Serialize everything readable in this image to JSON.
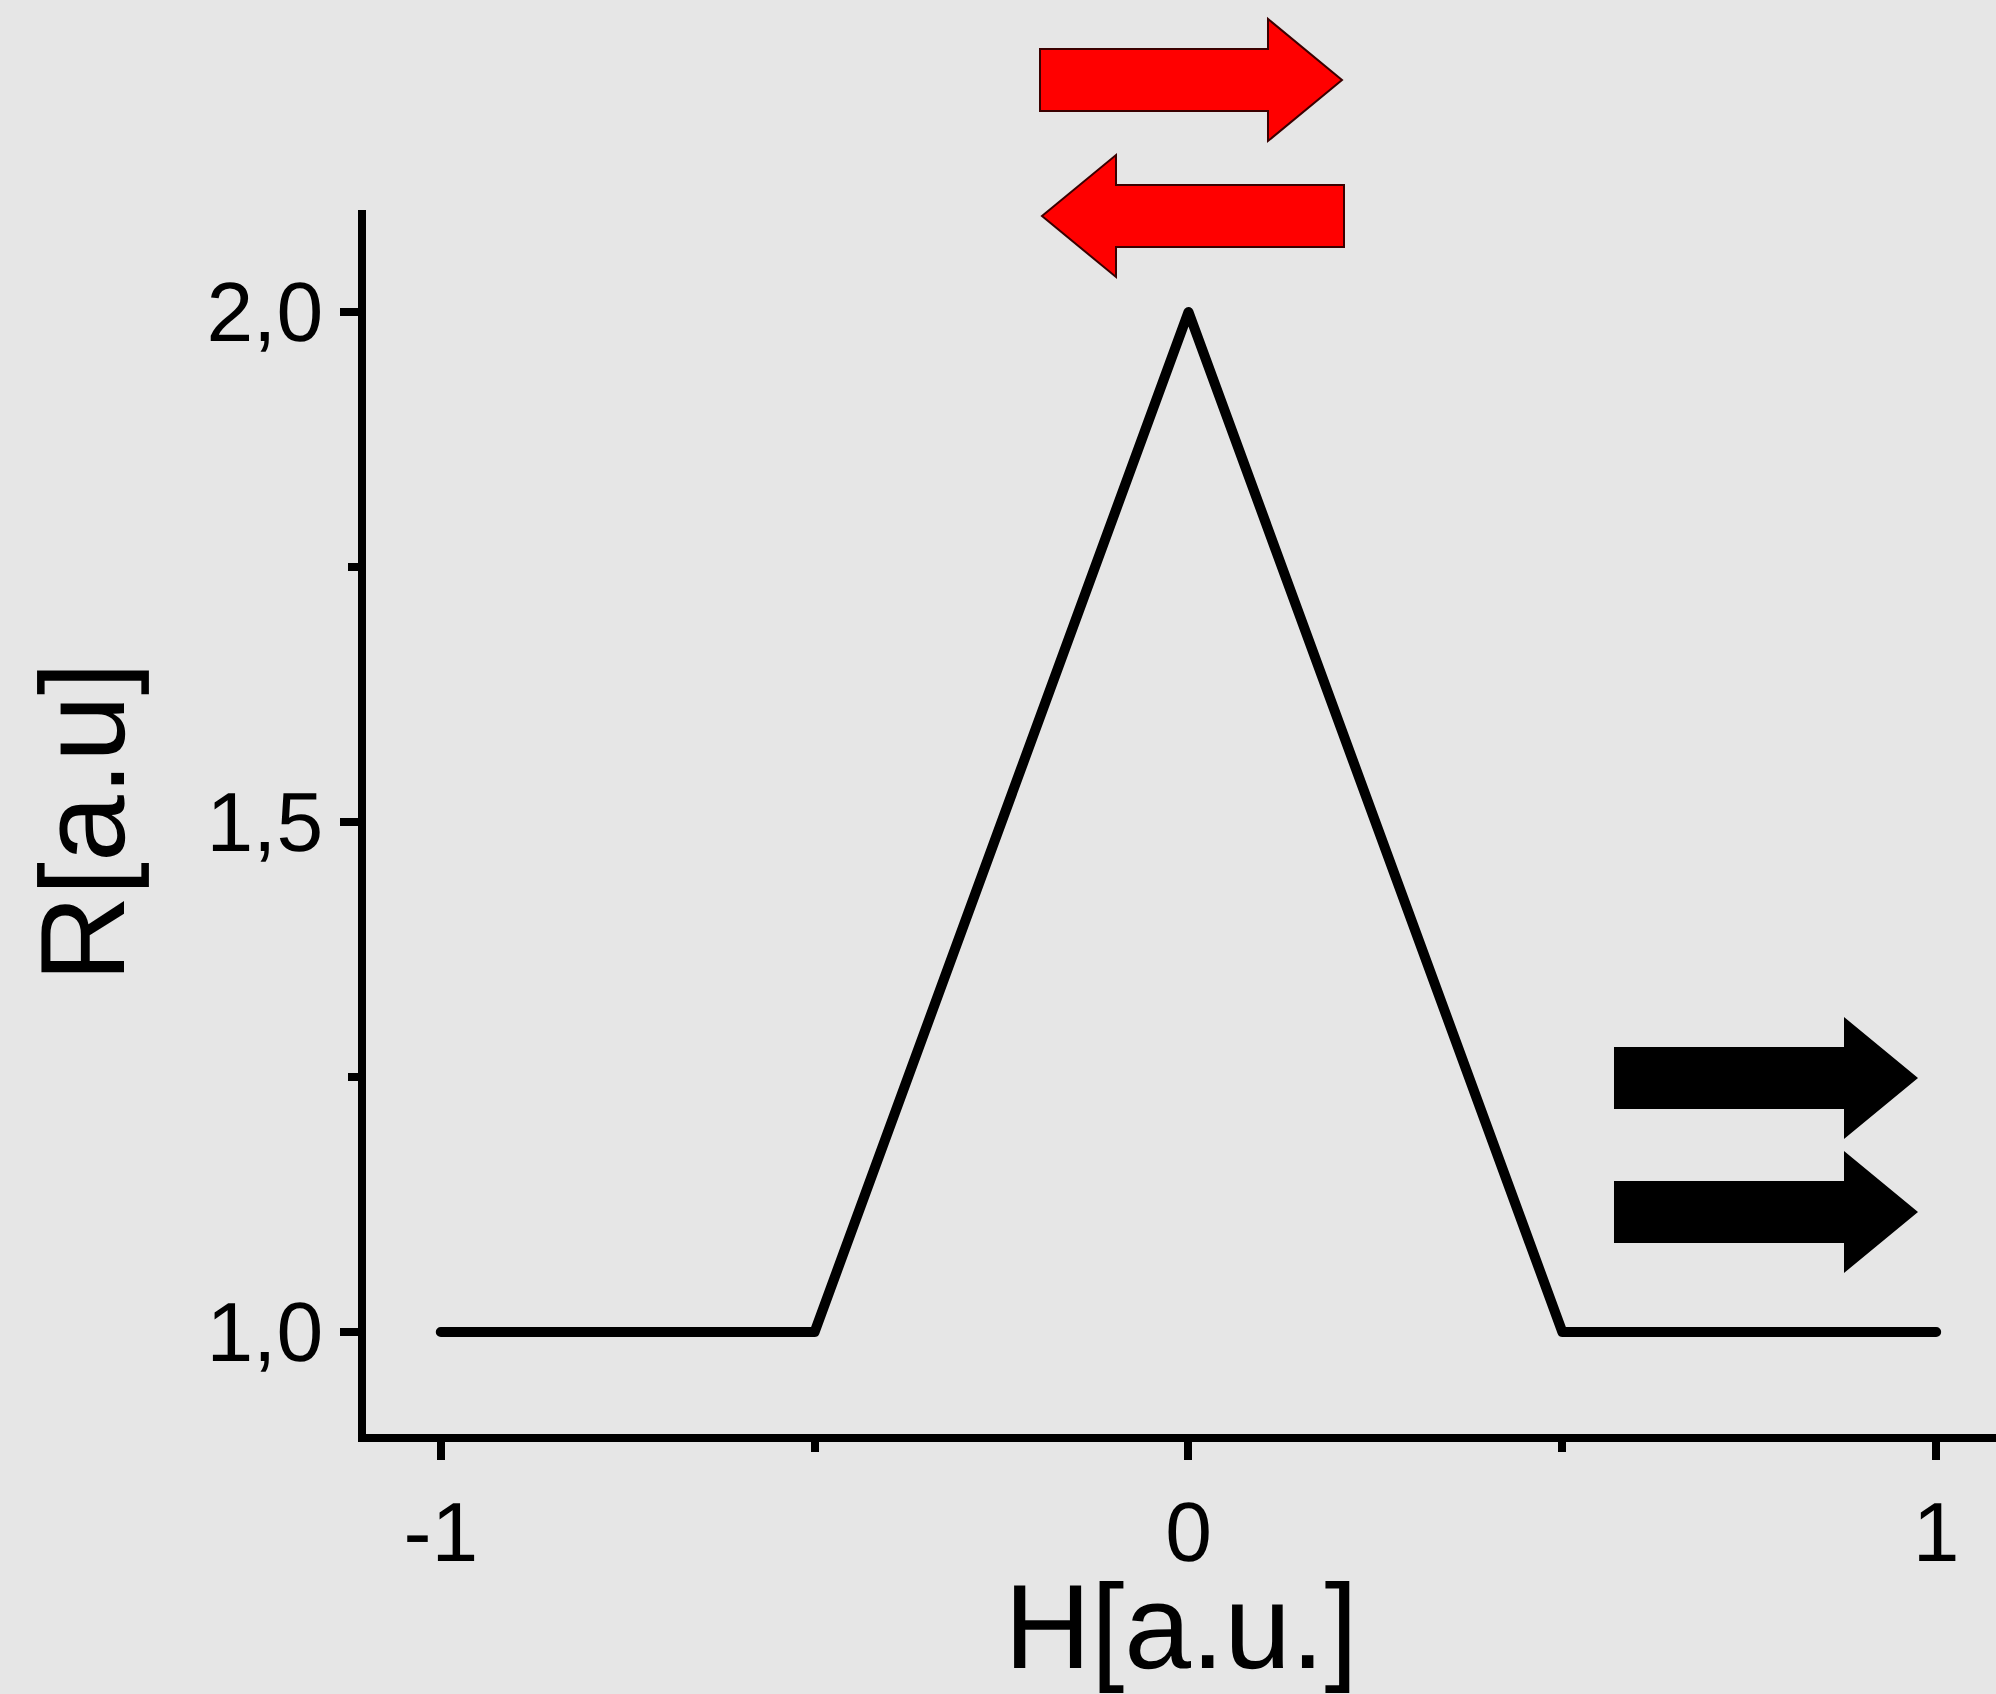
{
  "chart_data": {
    "type": "line",
    "xlabel": "H[a.u.]",
    "ylabel": "R[a.u]",
    "x": [
      -1,
      -0.5,
      0,
      0.5,
      1
    ],
    "series": [
      {
        "color": "#000000",
        "values": [
          1,
          1,
          2,
          1,
          1
        ]
      }
    ],
    "xlim": [
      -1.1,
      1.08
    ],
    "ylim": [
      0.9,
      2.1
    ],
    "xticks": [
      -1,
      {
        "value": -0.5,
        "label": null
      },
      0,
      {
        "value": 0.5,
        "label": null
      },
      1
    ],
    "yticks": [
      {
        "value": 1,
        "label": "1,0"
      },
      {
        "value": 1.25,
        "label": null
      },
      {
        "value": 1.5,
        "label": "1,5"
      },
      {
        "value": 1.75,
        "label": null
      },
      {
        "value": 2,
        "label": "2,0"
      }
    ],
    "line_style": "solid"
  }
}
